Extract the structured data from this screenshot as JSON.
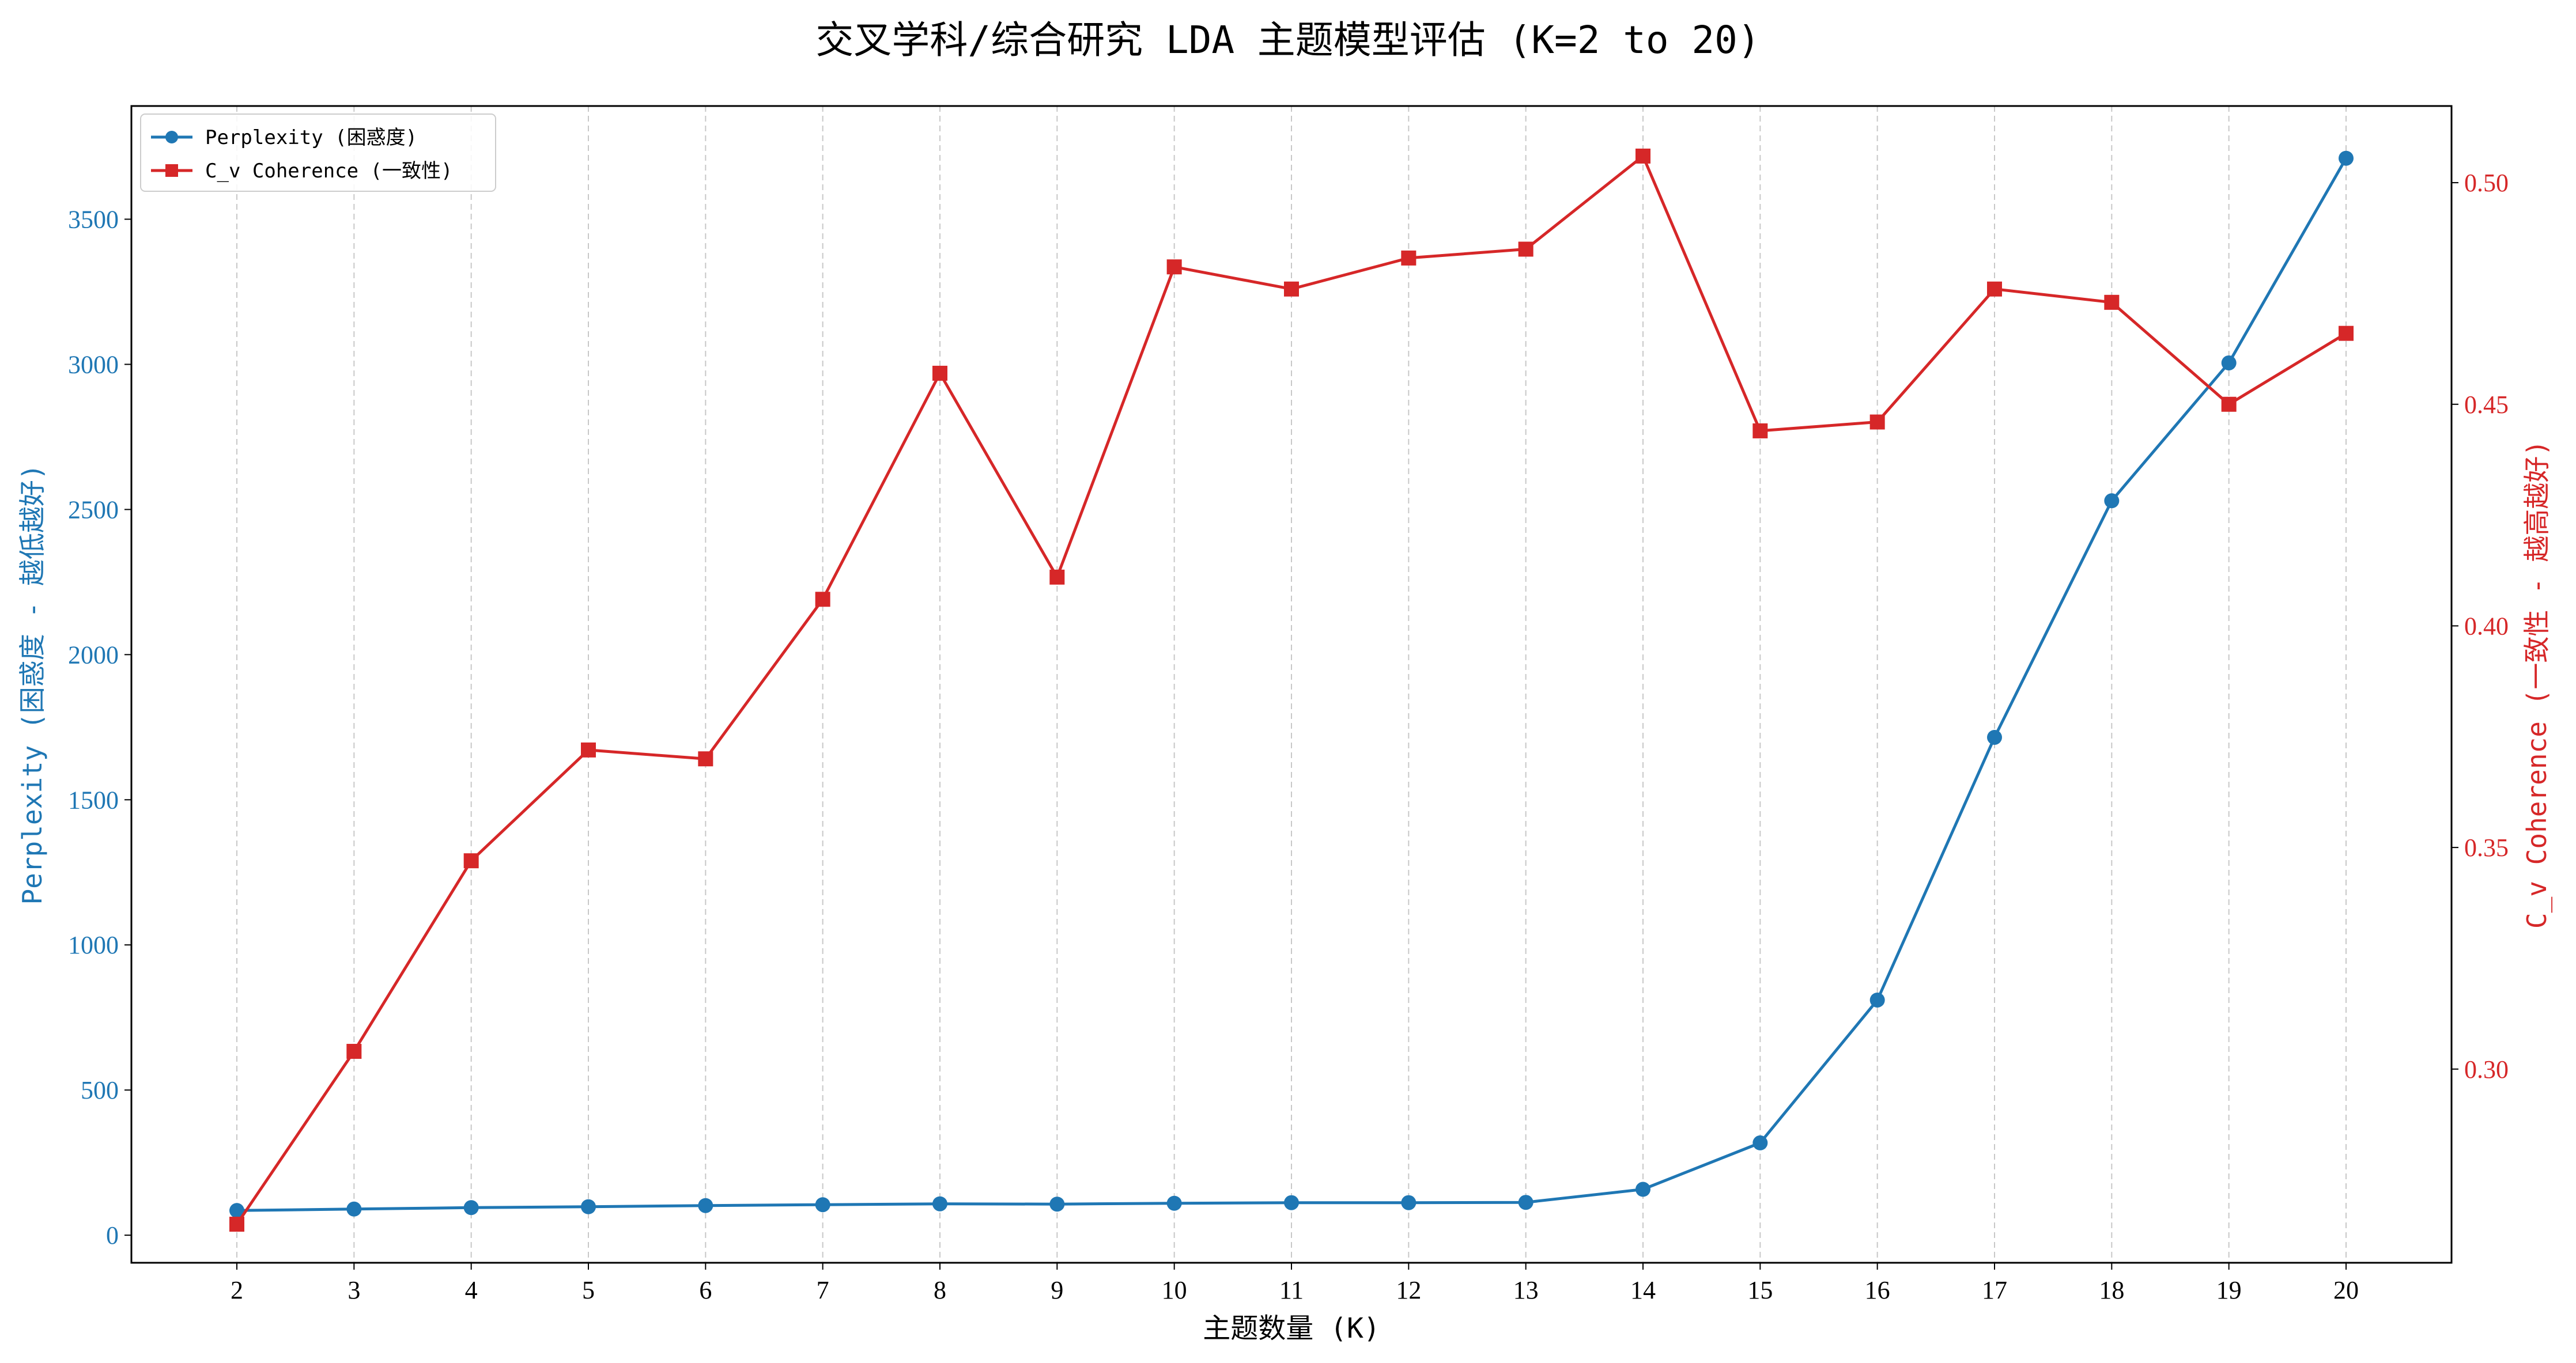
{
  "chart_data": {
    "type": "line",
    "title": "交叉学科/综合研究 LDA 主题模型评估 (K=2 to 20)",
    "xlabel": "主题数量 (K)",
    "x": [
      2,
      3,
      4,
      5,
      6,
      7,
      8,
      9,
      10,
      11,
      12,
      13,
      14,
      15,
      16,
      17,
      18,
      19,
      20
    ],
    "xlim": [
      1.1,
      20.9
    ],
    "grid": "x-dashed",
    "legend_position": "top-left",
    "left_axis": {
      "label": "Perplexity (困惑度 - 越低越好)",
      "ylim": [
        -95,
        3890
      ],
      "ticks": [
        0,
        500,
        1000,
        1500,
        2000,
        2500,
        3000,
        3500
      ],
      "color": "#1f77b4"
    },
    "right_axis": {
      "label": "C_v Coherence (一致性 - 越高越好)",
      "ylim": [
        0.2563,
        0.5173
      ],
      "ticks": [
        "0.30",
        "0.35",
        "0.40",
        "0.45",
        "0.50"
      ],
      "color": "#d62728"
    },
    "series": [
      {
        "name": "Perplexity (困惑度)",
        "axis": "left",
        "marker": "circle",
        "color": "#1f77b4",
        "values": [
          85,
          90,
          95,
          98,
          102,
          105,
          108,
          107,
          110,
          112,
          112,
          113,
          158,
          318,
          810,
          1715,
          2530,
          3005,
          3710
        ]
      },
      {
        "name": "C_v Coherence (一致性)",
        "axis": "right",
        "marker": "square",
        "color": "#d62728",
        "values": [
          0.265,
          0.304,
          0.347,
          0.372,
          0.37,
          0.406,
          0.457,
          0.411,
          0.481,
          0.476,
          0.483,
          0.485,
          0.506,
          0.444,
          0.446,
          0.476,
          0.473,
          0.45,
          0.466
        ]
      }
    ]
  }
}
